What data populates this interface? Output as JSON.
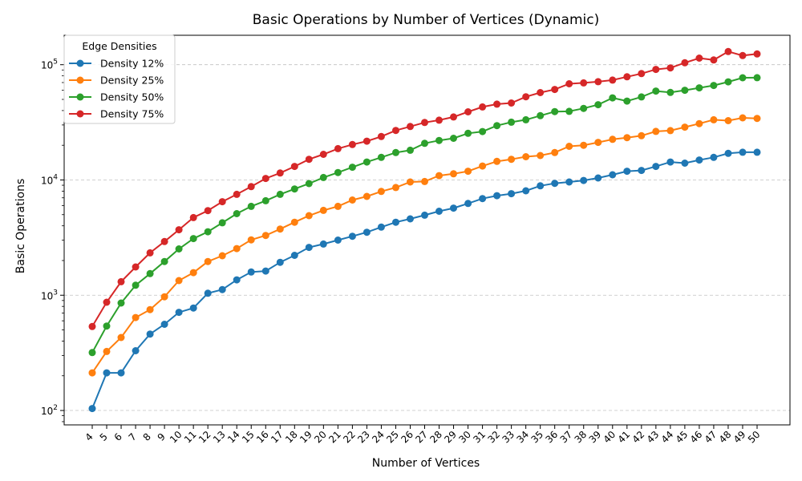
{
  "chart_data": {
    "type": "line",
    "title": "Basic Operations by Number of Vertices (Dynamic)",
    "xlabel": "Number of Vertices",
    "ylabel": "Basic Operations",
    "yscale": "log",
    "ylim": [
      75,
      180000
    ],
    "y_ticks": [
      {
        "value": 100,
        "base": "10",
        "exp": "2"
      },
      {
        "value": 1000,
        "base": "10",
        "exp": "3"
      },
      {
        "value": 10000,
        "base": "10",
        "exp": "4"
      },
      {
        "value": 100000,
        "base": "10",
        "exp": "5"
      }
    ],
    "grid": "y-dashed",
    "legend": {
      "title": "Edge Densities",
      "placement": "top-left"
    },
    "x": [
      "4",
      "5",
      "6",
      "7",
      "8",
      "9",
      "10",
      "11",
      "12",
      "13",
      "14",
      "15",
      "16",
      "17",
      "18",
      "19",
      "20",
      "21",
      "22",
      "23",
      "24",
      "25",
      "26",
      "27",
      "28",
      "29",
      "30",
      "31",
      "32",
      "33",
      "34",
      "35",
      "36",
      "37",
      "38",
      "39",
      "40",
      "41",
      "42",
      "43",
      "44",
      "45",
      "46",
      "47",
      "48",
      "49",
      "50"
    ],
    "series": [
      {
        "name": "Density 12%",
        "color": "#1f77b4",
        "values": [
          104,
          212,
          212,
          330,
          460,
          560,
          710,
          775,
          1040,
          1120,
          1360,
          1590,
          1620,
          1930,
          2220,
          2600,
          2780,
          3010,
          3250,
          3520,
          3900,
          4300,
          4600,
          4950,
          5350,
          5700,
          6250,
          6900,
          7300,
          7600,
          8050,
          8900,
          9350,
          9600,
          9900,
          10400,
          11100,
          11900,
          12100,
          13100,
          14300,
          14000,
          14900,
          15700,
          17000,
          17400,
          17400
        ]
      },
      {
        "name": "Density 25%",
        "color": "#ff7f0e",
        "values": [
          212,
          325,
          430,
          640,
          750,
          970,
          1340,
          1570,
          1960,
          2200,
          2540,
          3020,
          3300,
          3750,
          4300,
          4900,
          5450,
          5900,
          6700,
          7200,
          7950,
          8600,
          9600,
          9700,
          10900,
          11300,
          11900,
          13200,
          14500,
          15100,
          15900,
          16300,
          17300,
          19600,
          20000,
          21200,
          22500,
          23300,
          24200,
          26400,
          26800,
          28700,
          30800,
          33300,
          32700,
          34600,
          34200
        ]
      },
      {
        "name": "Density 50%",
        "color": "#2ca02c",
        "values": [
          318,
          540,
          855,
          1220,
          1540,
          1960,
          2520,
          3100,
          3550,
          4250,
          5100,
          5900,
          6600,
          7500,
          8350,
          9300,
          10500,
          11600,
          12900,
          14300,
          15700,
          17300,
          18100,
          20800,
          22000,
          23000,
          25400,
          26300,
          29600,
          31700,
          33300,
          36100,
          39200,
          39400,
          41800,
          45000,
          51500,
          48300,
          52500,
          59000,
          57500,
          60000,
          63000,
          66000,
          71000,
          77000,
          77200
        ]
      },
      {
        "name": "Density 75%",
        "color": "#d62728",
        "values": [
          535,
          870,
          1310,
          1760,
          2330,
          2920,
          3700,
          4720,
          5420,
          6480,
          7500,
          8750,
          10300,
          11500,
          13100,
          15100,
          16700,
          18700,
          20300,
          21700,
          23800,
          26900,
          29100,
          31500,
          33000,
          35200,
          39000,
          43000,
          45500,
          46500,
          52700,
          57300,
          61000,
          68300,
          69500,
          71200,
          73500,
          78500,
          83700,
          91000,
          93800,
          104000,
          114000,
          110000,
          130000,
          120000,
          124000
        ]
      }
    ]
  }
}
